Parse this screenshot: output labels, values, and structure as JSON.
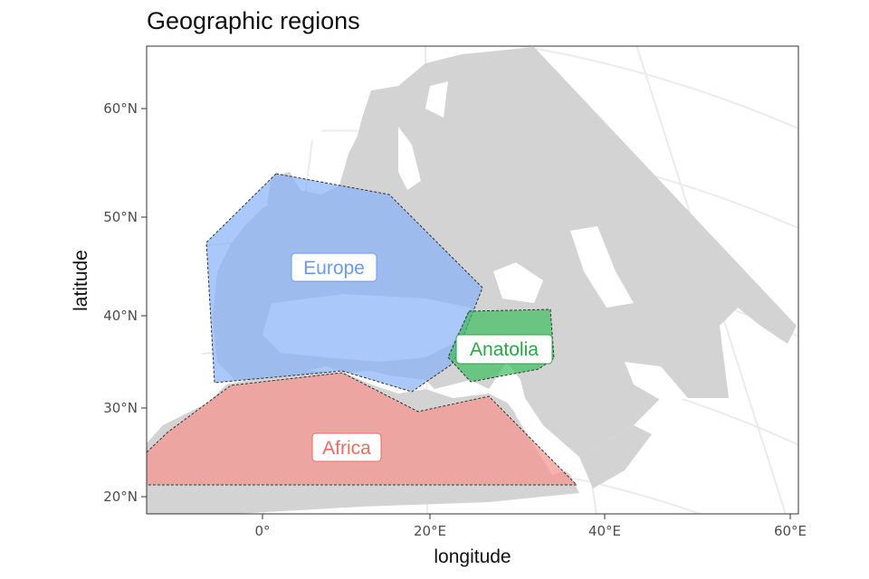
{
  "title": "Geographic regions",
  "axes": {
    "x_label": "longitude",
    "y_label": "latitude",
    "x_ticks": [
      "0°",
      "20°E",
      "40°E",
      "60°E"
    ],
    "y_ticks": [
      "60°N",
      "50°N",
      "40°N",
      "30°N",
      "20°N"
    ]
  },
  "map": {
    "land_color": "#d3d3d3",
    "graticule_color": "#ebebeb",
    "projection": "conic",
    "extent": {
      "lon": [
        -15,
        60
      ],
      "lat": [
        18,
        65
      ]
    }
  },
  "regions": [
    {
      "name": "Europe",
      "fill": "#86b0f8",
      "text_color": "#6a9af0"
    },
    {
      "name": "Anatolia",
      "fill": "#3fbf5f",
      "text_color": "#2aa844"
    },
    {
      "name": "Africa",
      "fill": "#f8928c",
      "text_color": "#ee6b63"
    }
  ],
  "legend": "none"
}
